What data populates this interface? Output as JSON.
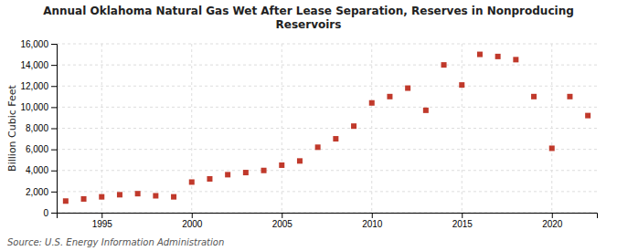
{
  "chart_data": {
    "type": "scatter",
    "title": "Annual Oklahoma Natural Gas Wet After Lease Separation, Reserves in Nonproducing\nReservoirs",
    "ylabel": "Billion Cubic Feet",
    "source": "Source: U.S. Energy Information Administration",
    "x": [
      1993,
      1994,
      1995,
      1996,
      1997,
      1998,
      1999,
      2000,
      2001,
      2002,
      2003,
      2004,
      2005,
      2006,
      2007,
      2008,
      2009,
      2010,
      2011,
      2012,
      2013,
      2014,
      2015,
      2016,
      2017,
      2018,
      2019,
      2020,
      2021,
      2022
    ],
    "values": [
      1100,
      1300,
      1500,
      1700,
      1800,
      1600,
      1500,
      2900,
      3200,
      3600,
      3800,
      4000,
      4500,
      4900,
      6200,
      7000,
      8200,
      10400,
      11000,
      11800,
      9700,
      14000,
      12100,
      15000,
      14800,
      14500,
      11000,
      6100,
      11000,
      9200
    ],
    "color": "#c0392b",
    "marker": "square",
    "xlim": [
      1992.5,
      2022.5
    ],
    "xticks": [
      1995,
      2000,
      2005,
      2010,
      2015,
      2020
    ],
    "ylim": [
      0,
      16000
    ],
    "yticks": [
      0,
      {
        "value": 2000,
        "label": "2,000"
      },
      {
        "value": 4000,
        "label": "4,000"
      },
      {
        "value": 6000,
        "label": "6,000"
      },
      {
        "value": 8000,
        "label": "8,000"
      },
      {
        "value": 10000,
        "label": "10,000"
      },
      {
        "value": 12000,
        "label": "12,000"
      },
      {
        "value": 14000,
        "label": "14,000"
      },
      {
        "value": 16000,
        "label": "16,000"
      }
    ],
    "grid": true
  }
}
